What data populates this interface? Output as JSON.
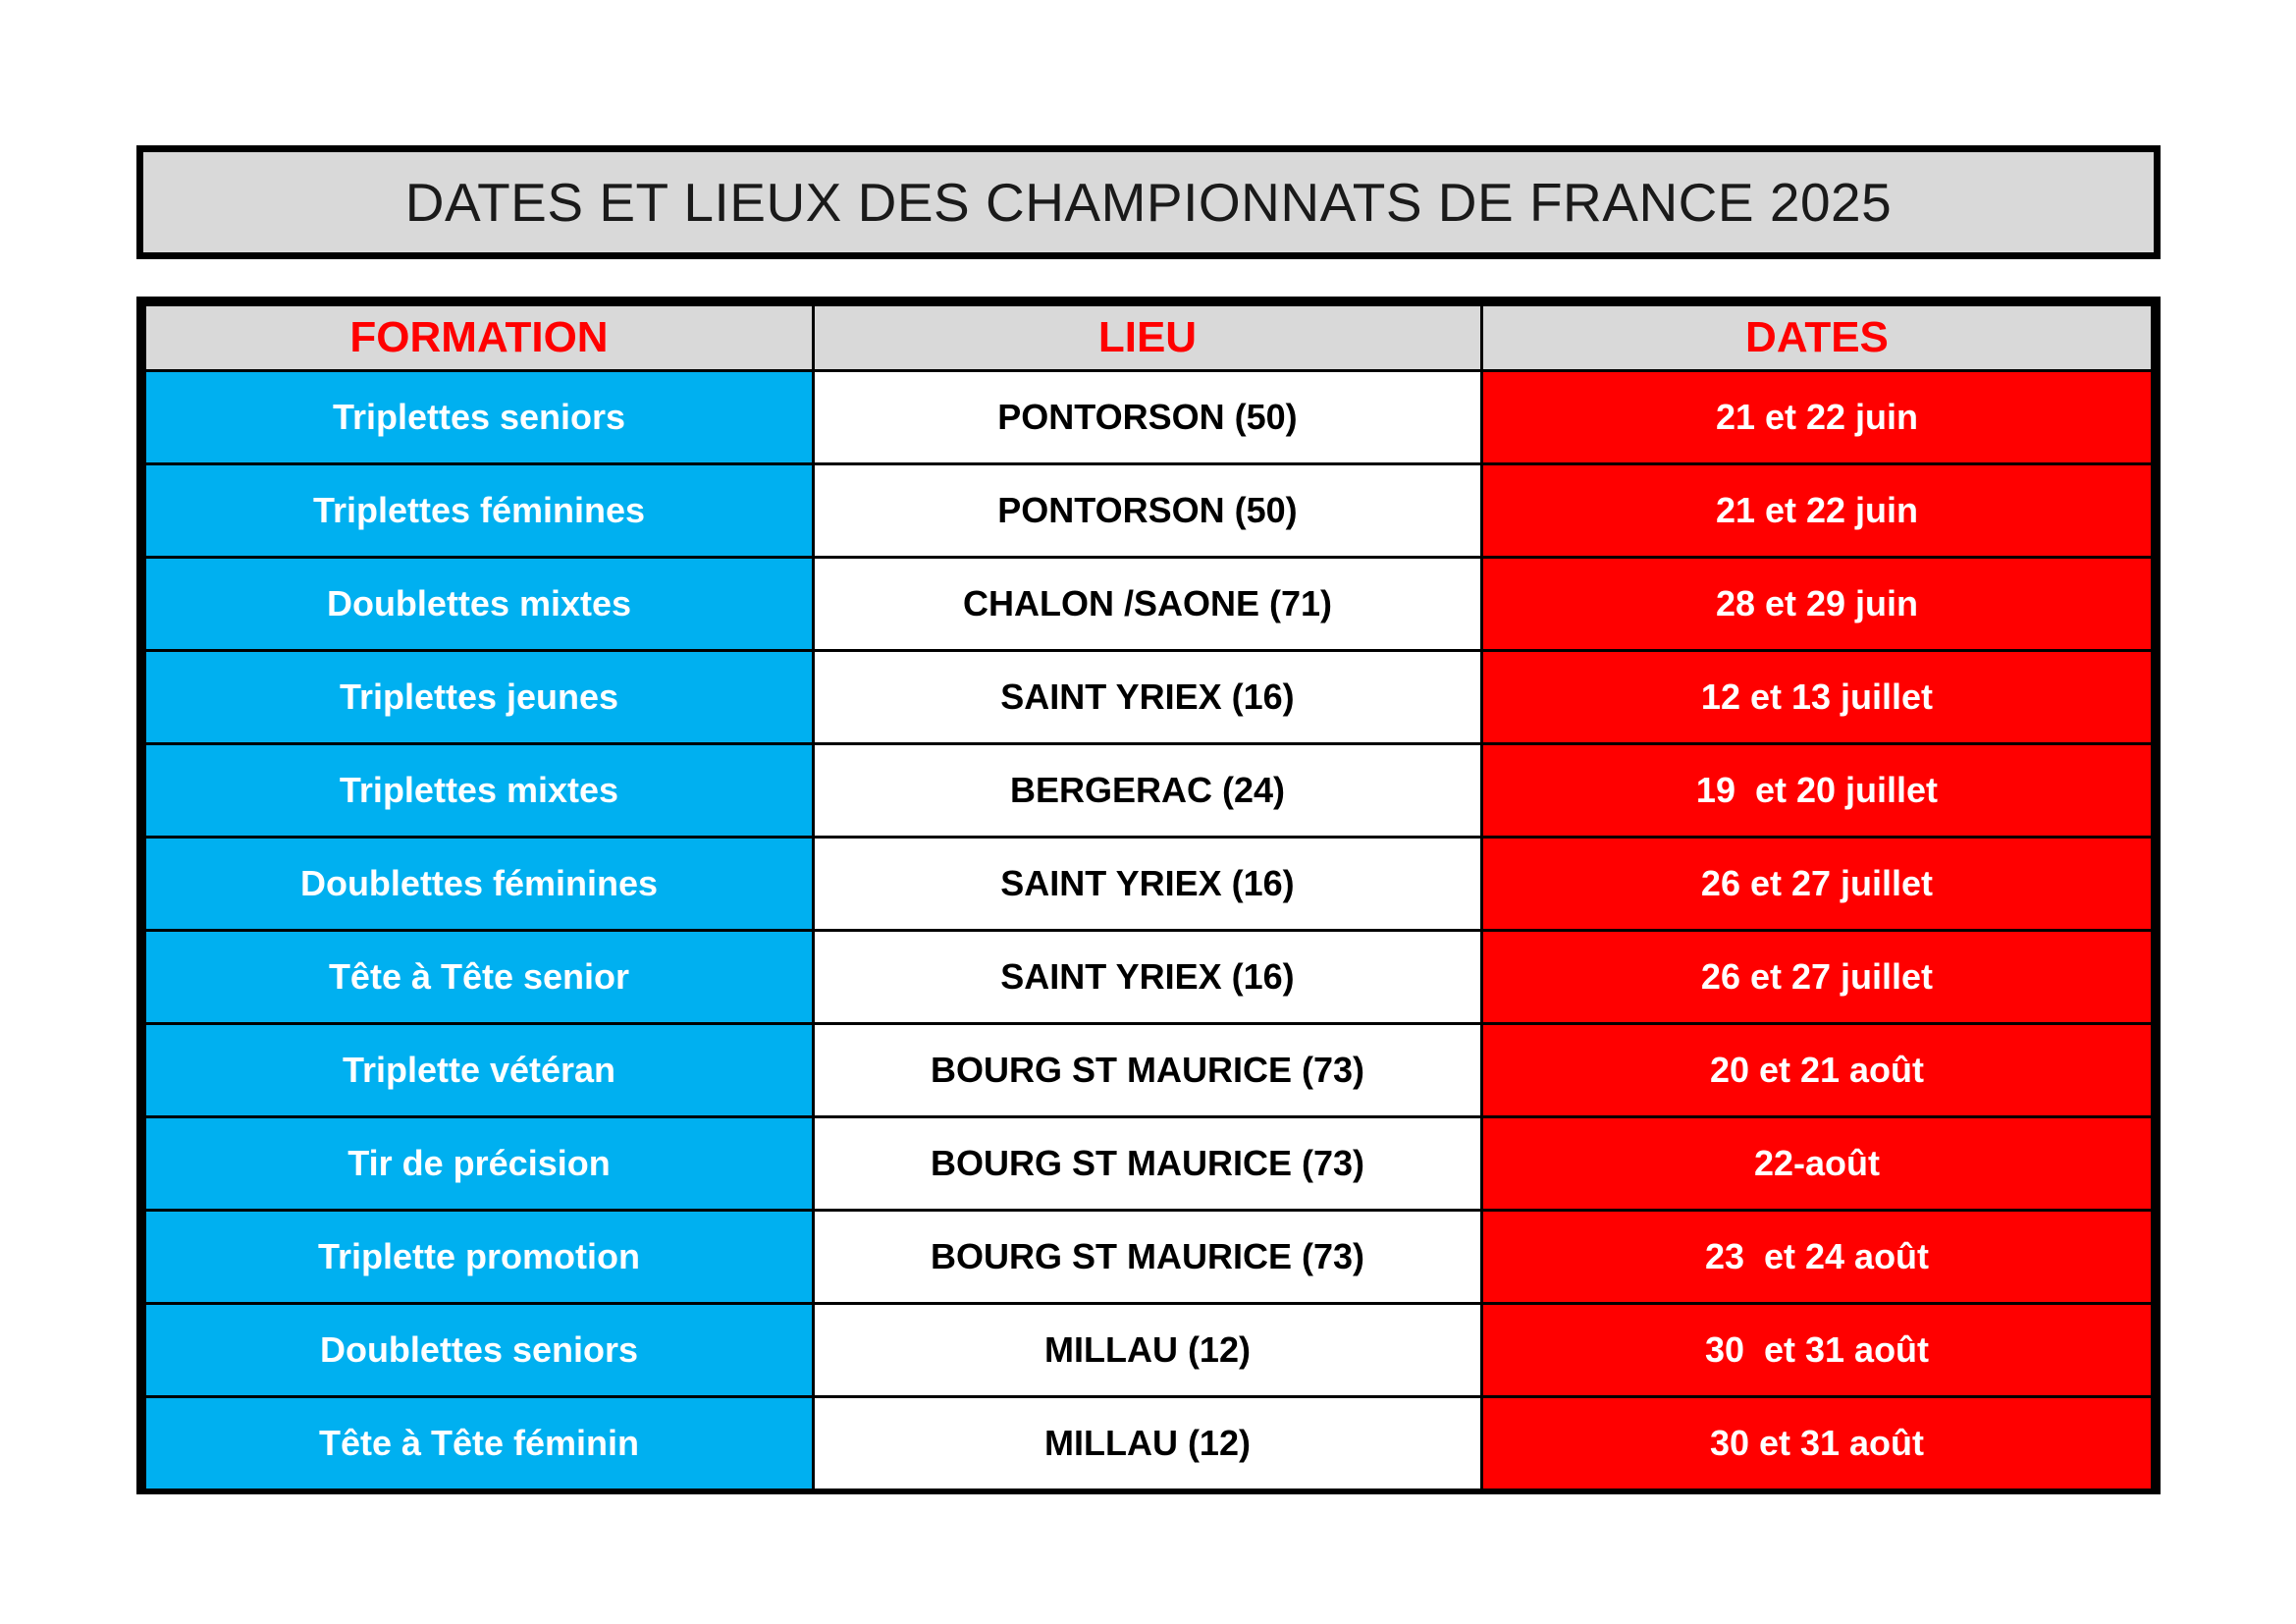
{
  "title": "DATES ET LIEUX DES CHAMPIONNATS DE FRANCE 2025",
  "colors": {
    "header_bg": "#d9d9d9",
    "header_text": "#ff0000",
    "formation_bg": "#00b0f0",
    "lieu_bg": "#ffffff",
    "dates_bg": "#ff0000",
    "border": "#000000"
  },
  "table": {
    "headers": [
      "FORMATION",
      "LIEU",
      "DATES"
    ],
    "rows": [
      {
        "formation": "Triplettes seniors",
        "lieu": "PONTORSON (50)",
        "dates": "21 et 22 juin"
      },
      {
        "formation": "Triplettes féminines",
        "lieu": "PONTORSON (50)",
        "dates": "21 et 22 juin"
      },
      {
        "formation": "Doublettes mixtes",
        "lieu": "CHALON /SAONE (71)",
        "dates": "28 et 29 juin"
      },
      {
        "formation": "Triplettes jeunes",
        "lieu": "SAINT YRIEX (16)",
        "dates": "12 et 13 juillet"
      },
      {
        "formation": "Triplettes mixtes",
        "lieu": "BERGERAC (24)",
        "dates": "19  et 20 juillet"
      },
      {
        "formation": "Doublettes féminines",
        "lieu": "SAINT YRIEX (16)",
        "dates": "26 et 27 juillet"
      },
      {
        "formation": "Tête à Tête senior",
        "lieu": "SAINT YRIEX (16)",
        "dates": "26 et 27 juillet"
      },
      {
        "formation": "Triplette vétéran",
        "lieu": "BOURG ST MAURICE (73)",
        "dates": "20 et 21 août"
      },
      {
        "formation": "Tir de précision",
        "lieu": "BOURG ST MAURICE (73)",
        "dates": "22-août"
      },
      {
        "formation": "Triplette promotion",
        "lieu": "BOURG ST MAURICE (73)",
        "dates": "23  et 24 août"
      },
      {
        "formation": "Doublettes seniors",
        "lieu": "MILLAU (12)",
        "dates": "30  et 31 août"
      },
      {
        "formation": "Tête à Tête féminin",
        "lieu": "MILLAU (12)",
        "dates": "30 et 31 août"
      }
    ]
  }
}
